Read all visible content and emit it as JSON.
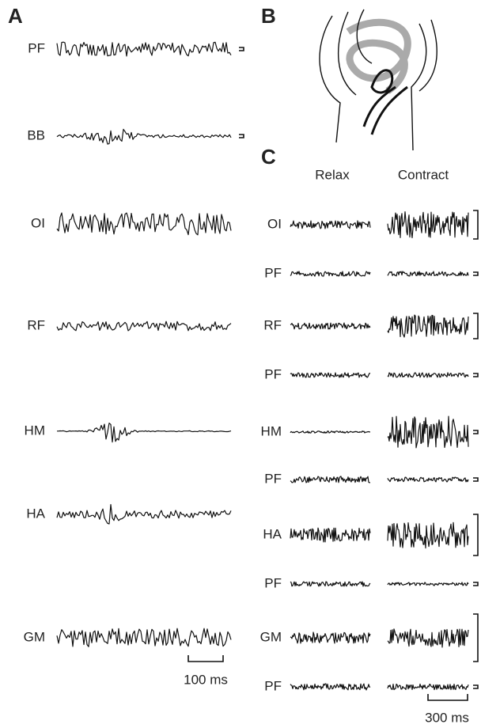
{
  "panels": {
    "A": {
      "label": "A",
      "traces": [
        "PF",
        "BB",
        "OI",
        "RF",
        "HM",
        "HA",
        "GM"
      ],
      "scale_bar": "100 ms"
    },
    "B": {
      "label": "B"
    },
    "C": {
      "label": "C",
      "columns": [
        "Relax",
        "Contract"
      ],
      "traces": [
        "OI",
        "PF",
        "RF",
        "PF",
        "HM",
        "PF",
        "HA",
        "PF",
        "GM",
        "PF"
      ],
      "scale_bar": "300 ms"
    }
  }
}
